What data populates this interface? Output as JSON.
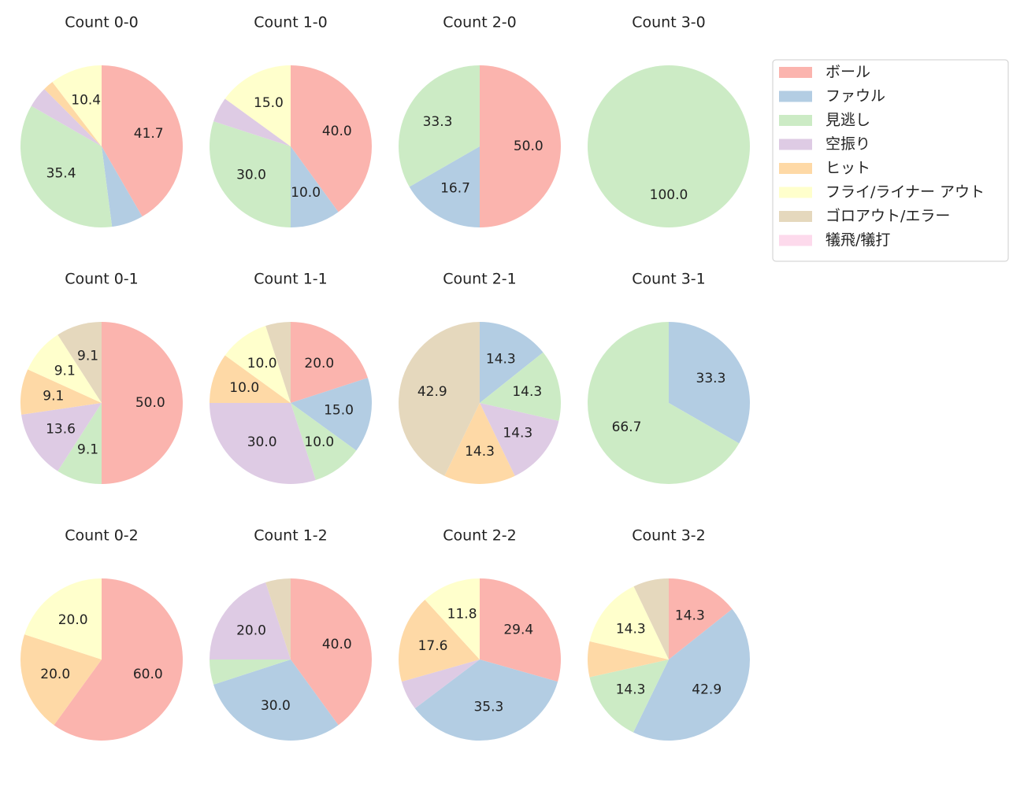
{
  "chart_data": [
    {
      "type": "pie",
      "title": "Count 0-0",
      "values": [
        41.7,
        6.3,
        35.4,
        4.2,
        2.1,
        10.4,
        0,
        0
      ],
      "value_labels": [
        "41.7",
        null,
        "35.4",
        null,
        null,
        "10.4",
        null,
        null
      ]
    },
    {
      "type": "pie",
      "title": "Count 1-0",
      "values": [
        40.0,
        10.0,
        30.0,
        5.0,
        0,
        15.0,
        0,
        0
      ],
      "value_labels": [
        "40.0",
        "10.0",
        "30.0",
        null,
        null,
        "15.0",
        null,
        null
      ]
    },
    {
      "type": "pie",
      "title": "Count 2-0",
      "values": [
        50.0,
        16.7,
        33.3,
        0,
        0,
        0,
        0,
        0
      ],
      "value_labels": [
        "50.0",
        "16.7",
        "33.3",
        null,
        null,
        null,
        null,
        null
      ]
    },
    {
      "type": "pie",
      "title": "Count 3-0",
      "values": [
        0,
        0,
        100.0,
        0,
        0,
        0,
        0,
        0
      ],
      "value_labels": [
        null,
        null,
        "100.0",
        null,
        null,
        null,
        null,
        null
      ]
    },
    {
      "type": "pie",
      "title": "Count 0-1",
      "values": [
        50.0,
        0,
        9.1,
        13.6,
        9.1,
        9.1,
        9.1,
        0
      ],
      "value_labels": [
        "50.0",
        null,
        "9.1",
        "13.6",
        "9.1",
        "9.1",
        "9.1",
        null
      ]
    },
    {
      "type": "pie",
      "title": "Count 1-1",
      "values": [
        20.0,
        15.0,
        10.0,
        30.0,
        10.0,
        10.0,
        5.0,
        0
      ],
      "value_labels": [
        "20.0",
        "15.0",
        "10.0",
        "30.0",
        "10.0",
        "10.0",
        null,
        null
      ]
    },
    {
      "type": "pie",
      "title": "Count 2-1",
      "values": [
        0,
        14.3,
        14.3,
        14.3,
        14.3,
        0,
        42.9,
        0
      ],
      "value_labels": [
        null,
        "14.3",
        "14.3",
        "14.3",
        "14.3",
        null,
        "42.9",
        null
      ]
    },
    {
      "type": "pie",
      "title": "Count 3-1",
      "values": [
        0,
        33.3,
        66.7,
        0,
        0,
        0,
        0,
        0
      ],
      "value_labels": [
        null,
        "33.3",
        "66.7",
        null,
        null,
        null,
        null,
        null
      ]
    },
    {
      "type": "pie",
      "title": "Count 0-2",
      "values": [
        60.0,
        0,
        0,
        0,
        20.0,
        20.0,
        0,
        0
      ],
      "value_labels": [
        "60.0",
        null,
        null,
        null,
        "20.0",
        "20.0",
        null,
        null
      ]
    },
    {
      "type": "pie",
      "title": "Count 1-2",
      "values": [
        40.0,
        30.0,
        5.0,
        20.0,
        0,
        0,
        5.0,
        0
      ],
      "value_labels": [
        "40.0",
        "30.0",
        null,
        "20.0",
        null,
        null,
        null,
        null
      ]
    },
    {
      "type": "pie",
      "title": "Count 2-2",
      "values": [
        29.4,
        35.3,
        0,
        5.9,
        17.6,
        11.8,
        0,
        0
      ],
      "value_labels": [
        "29.4",
        "35.3",
        null,
        null,
        "17.6",
        "11.8",
        null,
        null
      ]
    },
    {
      "type": "pie",
      "title": "Count 3-2",
      "values": [
        14.3,
        42.9,
        14.3,
        0,
        7.1,
        14.3,
        7.1,
        0
      ],
      "value_labels": [
        "14.3",
        "42.9",
        "14.3",
        null,
        null,
        "14.3",
        null,
        null
      ]
    }
  ],
  "legend": {
    "position": "upper right",
    "categories": [
      "ボール",
      "ファウル",
      "見逃し",
      "空振り",
      "ヒット",
      "フライ/ライナー アウト",
      "ゴロアウト/エラー",
      "犠飛/犠打"
    ],
    "colors": [
      "#fbb4ae",
      "#b3cde3",
      "#ccebc5",
      "#decbe4",
      "#fed9a6",
      "#ffffcc",
      "#e5d8bd",
      "#fddaec"
    ]
  }
}
